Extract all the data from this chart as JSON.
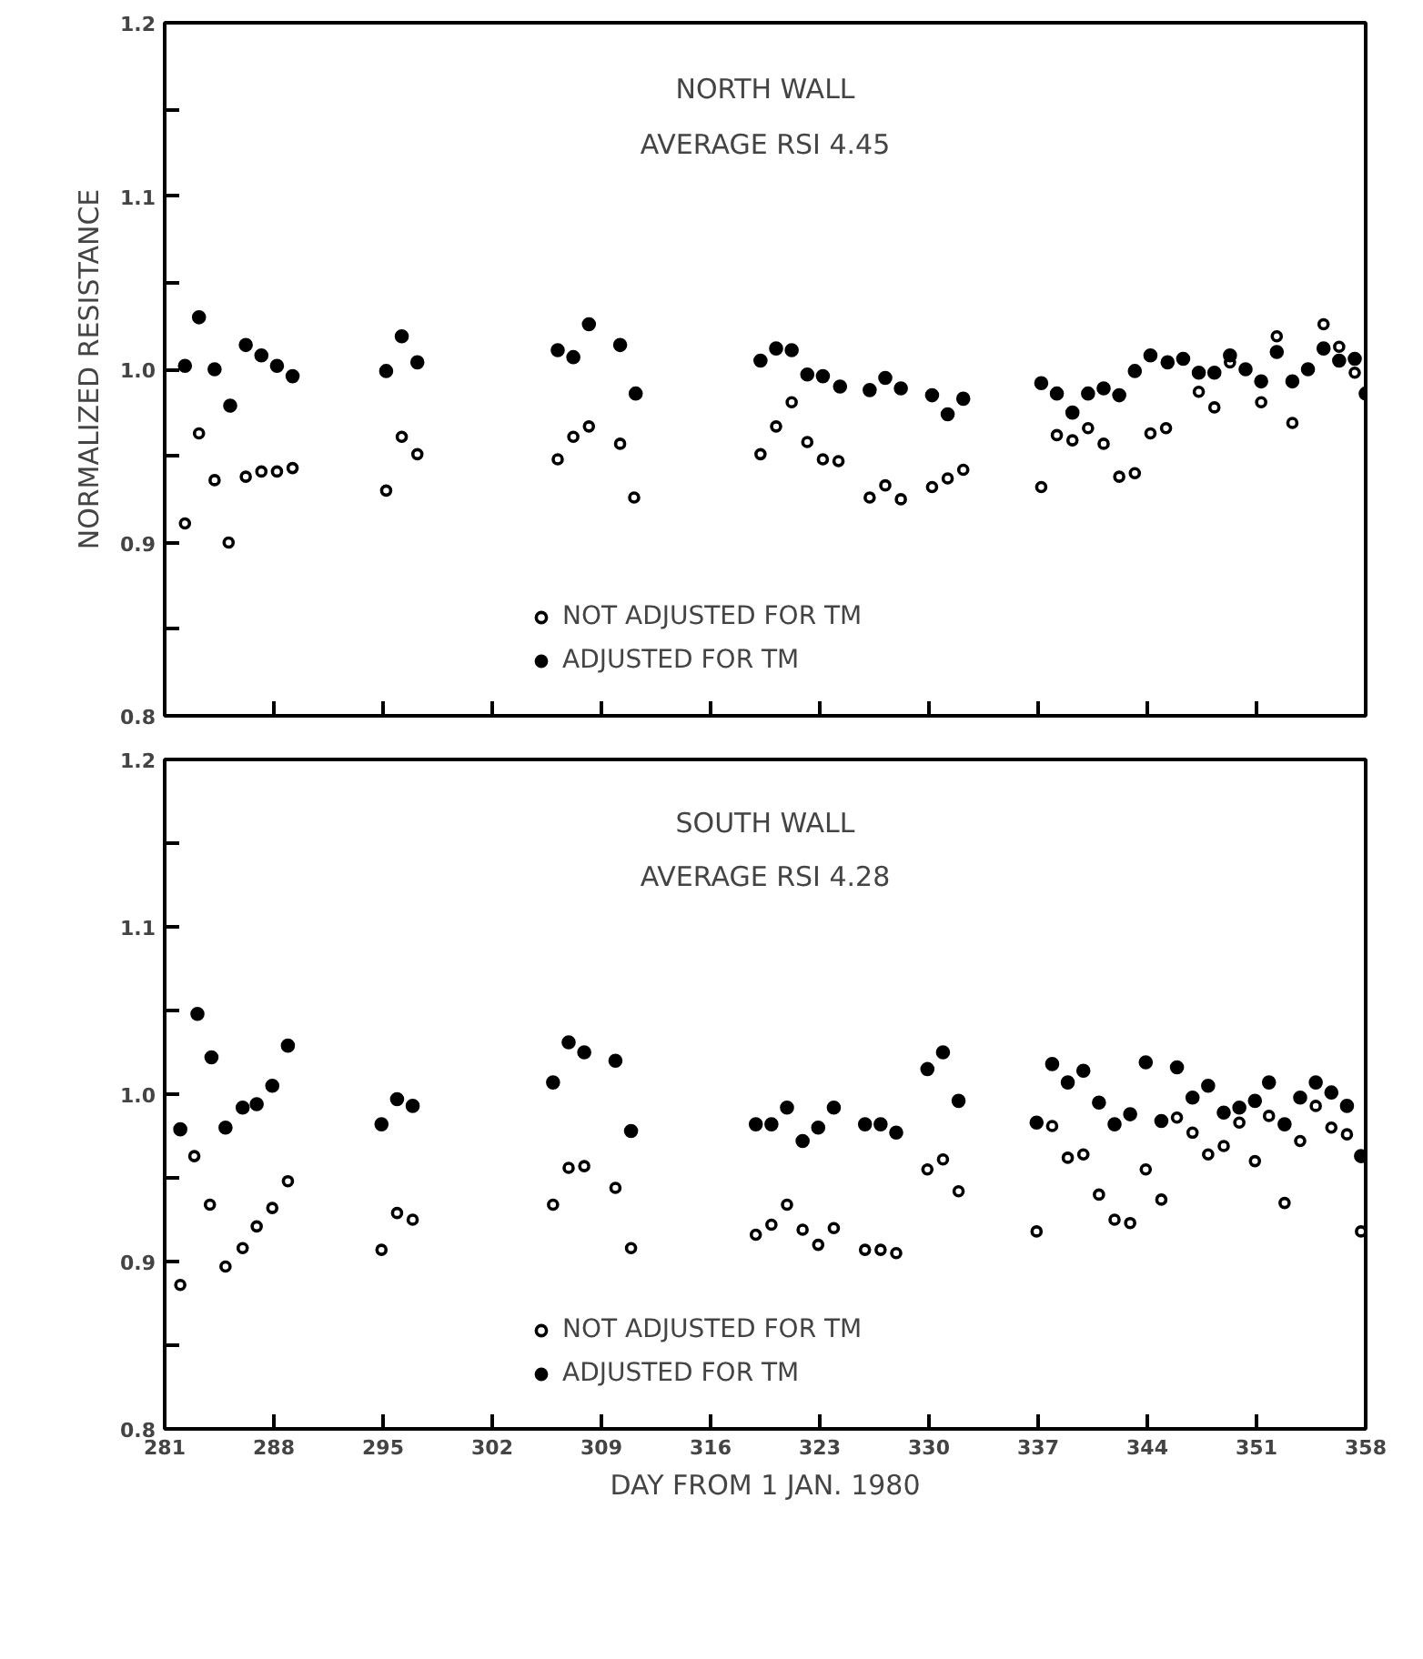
{
  "chart_data": [
    {
      "type": "scatter",
      "title": "NORTH WALL",
      "subtitle": "AVERAGE RSI 4.45",
      "ylabel": "NORMALIZED RESISTANCE",
      "xlim": [
        281,
        358
      ],
      "xticks": [
        {
          "value": 281,
          "label": null
        },
        {
          "value": 288,
          "label": null
        },
        {
          "value": 295,
          "label": null
        },
        {
          "value": 302,
          "label": null
        },
        {
          "value": 309,
          "label": null
        },
        {
          "value": 316,
          "label": null
        },
        {
          "value": 323,
          "label": null
        },
        {
          "value": 330,
          "label": null
        },
        {
          "value": 337,
          "label": null
        },
        {
          "value": 344,
          "label": null
        },
        {
          "value": 351,
          "label": null
        },
        {
          "value": 358,
          "label": null
        }
      ],
      "ylim": [
        0.8,
        1.2
      ],
      "yticks": [
        {
          "value": 0.8,
          "label": "0.8"
        },
        {
          "value": 0.85,
          "label": null
        },
        {
          "value": 0.9,
          "label": "0.9"
        },
        {
          "value": 0.95,
          "label": null
        },
        {
          "value": 1.0,
          "label": "1.0"
        },
        {
          "value": 1.05,
          "label": null
        },
        {
          "value": 1.1,
          "label": "1.1"
        },
        {
          "value": 1.15,
          "label": null
        },
        {
          "value": 1.2,
          "label": "1.2"
        }
      ],
      "tick_labels": "y",
      "grid": false,
      "legend": "bottom",
      "series": [
        {
          "name": "NOT ADJUSTED FOR TM",
          "color": "#000000",
          "marker": "circle_open",
          "x": [
            282.3,
            283.2,
            284.2,
            285.1,
            286.2,
            287.2,
            288.2,
            289.2,
            295.2,
            296.2,
            297.2,
            306.2,
            307.2,
            308.2,
            310.2,
            311.1,
            319.2,
            320.2,
            321.2,
            322.2,
            323.2,
            324.2,
            326.2,
            327.2,
            328.2,
            330.2,
            331.2,
            332.2,
            337.2,
            338.2,
            339.2,
            340.2,
            341.2,
            342.2,
            343.2,
            344.2,
            345.2,
            347.3,
            348.3,
            349.3,
            351.3,
            352.3,
            353.3,
            354.3,
            355.3,
            356.3,
            357.3
          ],
          "values": [
            0.911,
            0.963,
            0.936,
            0.9,
            0.938,
            0.941,
            0.941,
            0.943,
            0.93,
            0.961,
            0.951,
            0.948,
            0.961,
            0.967,
            0.957,
            0.926,
            0.951,
            0.967,
            0.981,
            0.958,
            0.948,
            0.947,
            0.926,
            0.933,
            0.925,
            0.932,
            0.937,
            0.942,
            0.932,
            0.962,
            0.959,
            0.966,
            0.957,
            0.938,
            0.94,
            0.963,
            0.966,
            0.987,
            0.978,
            1.004,
            0.981,
            1.019,
            0.969,
            null,
            1.026,
            1.013,
            0.998
          ]
        },
        {
          "name": "ADJUSTED FOR TM",
          "color": "#000000",
          "marker": "circle",
          "x": [
            282.3,
            283.2,
            284.2,
            285.2,
            286.2,
            287.2,
            288.2,
            289.2,
            295.2,
            296.2,
            297.2,
            306.2,
            307.2,
            308.2,
            310.2,
            311.2,
            319.2,
            320.2,
            321.2,
            322.2,
            323.2,
            324.3,
            326.2,
            327.2,
            328.2,
            330.2,
            331.2,
            332.2,
            337.2,
            338.2,
            339.2,
            340.2,
            341.2,
            342.2,
            343.2,
            344.2,
            345.3,
            346.3,
            347.3,
            348.3,
            349.3,
            350.3,
            351.3,
            352.3,
            353.3,
            354.3,
            355.3,
            356.3,
            357.3,
            358.0
          ],
          "values": [
            1.002,
            1.03,
            1.0,
            0.979,
            1.014,
            1.008,
            1.002,
            0.996,
            0.999,
            1.019,
            1.004,
            1.011,
            1.007,
            1.026,
            1.014,
            0.986,
            1.005,
            1.012,
            1.011,
            0.997,
            0.996,
            0.99,
            0.988,
            0.995,
            0.989,
            0.985,
            0.974,
            0.983,
            0.992,
            0.986,
            0.975,
            0.986,
            0.989,
            0.985,
            0.999,
            1.008,
            1.004,
            1.006,
            0.998,
            0.998,
            1.008,
            1.0,
            0.993,
            1.01,
            0.993,
            1.0,
            1.012,
            1.005,
            1.006,
            0.986
          ]
        }
      ]
    },
    {
      "type": "scatter",
      "title": "SOUTH WALL",
      "subtitle": "AVERAGE RSI 4.28",
      "xlabel": "DAY FROM 1 JAN. 1980",
      "xlim": [
        281,
        358
      ],
      "xticks": [
        281,
        288,
        295,
        302,
        309,
        316,
        323,
        330,
        337,
        344,
        351,
        358
      ],
      "ylim": [
        0.8,
        1.2
      ],
      "yticks": [
        {
          "value": 0.8,
          "label": "0.8"
        },
        {
          "value": 0.85,
          "label": null
        },
        {
          "value": 0.9,
          "label": "0.9"
        },
        {
          "value": 0.95,
          "label": null
        },
        {
          "value": 1.0,
          "label": "1.0"
        },
        {
          "value": 1.05,
          "label": null
        },
        {
          "value": 1.1,
          "label": "1.1"
        },
        {
          "value": 1.15,
          "label": null
        },
        {
          "value": 1.2,
          "label": "1.2"
        }
      ],
      "grid": false,
      "legend": "bottom",
      "series": [
        {
          "name": "NOT ADJUSTED FOR TM",
          "color": "#000000",
          "marker": "circle_open",
          "x": [
            282.0,
            282.9,
            283.9,
            284.9,
            286.0,
            286.9,
            287.9,
            288.9,
            294.9,
            295.9,
            296.9,
            305.9,
            306.9,
            307.9,
            309.9,
            310.9,
            318.9,
            319.9,
            320.9,
            321.9,
            322.9,
            323.9,
            325.9,
            326.9,
            327.9,
            329.9,
            330.9,
            331.9,
            336.9,
            337.9,
            338.9,
            339.9,
            340.9,
            341.9,
            342.9,
            343.9,
            344.9,
            345.9,
            346.9,
            347.9,
            348.9,
            349.9,
            350.9,
            351.8,
            352.8,
            353.8,
            354.8,
            355.8,
            356.8,
            357.7
          ],
          "values": [
            0.886,
            0.963,
            0.934,
            0.897,
            0.908,
            0.921,
            0.932,
            0.948,
            0.907,
            0.929,
            0.925,
            0.934,
            0.956,
            0.957,
            0.944,
            0.908,
            0.916,
            0.922,
            0.934,
            0.919,
            0.91,
            0.92,
            0.907,
            0.907,
            0.905,
            0.955,
            0.961,
            0.942,
            0.918,
            0.981,
            0.962,
            0.964,
            0.94,
            0.925,
            0.923,
            0.955,
            0.937,
            0.986,
            0.977,
            0.964,
            0.969,
            0.983,
            0.96,
            0.987,
            0.935,
            0.972,
            0.993,
            0.98,
            0.976,
            0.918
          ]
        },
        {
          "name": "ADJUSTED FOR TM",
          "color": "#000000",
          "marker": "circle",
          "x": [
            282.0,
            283.1,
            284.0,
            284.9,
            286.0,
            286.9,
            287.9,
            288.9,
            294.9,
            295.9,
            296.9,
            305.9,
            306.9,
            307.9,
            309.9,
            310.9,
            318.9,
            319.9,
            320.9,
            321.9,
            322.9,
            323.9,
            325.9,
            326.9,
            327.9,
            329.9,
            330.9,
            331.9,
            336.9,
            337.9,
            338.9,
            339.9,
            340.9,
            341.9,
            342.9,
            343.9,
            344.9,
            345.9,
            346.9,
            347.9,
            348.9,
            349.9,
            350.9,
            351.8,
            352.8,
            353.8,
            354.8,
            355.8,
            356.8,
            357.7
          ],
          "values": [
            0.979,
            1.048,
            1.022,
            0.98,
            0.992,
            0.994,
            1.005,
            1.029,
            0.982,
            0.997,
            0.993,
            1.007,
            1.031,
            1.025,
            1.02,
            0.978,
            0.982,
            0.982,
            0.992,
            0.972,
            0.98,
            0.992,
            0.982,
            0.982,
            0.977,
            1.015,
            1.025,
            0.996,
            0.983,
            1.018,
            1.007,
            1.014,
            0.995,
            0.982,
            0.988,
            1.019,
            0.984,
            1.016,
            0.998,
            1.005,
            0.989,
            0.992,
            0.996,
            1.007,
            0.982,
            0.998,
            1.007,
            1.001,
            0.993,
            0.963
          ]
        }
      ]
    }
  ]
}
